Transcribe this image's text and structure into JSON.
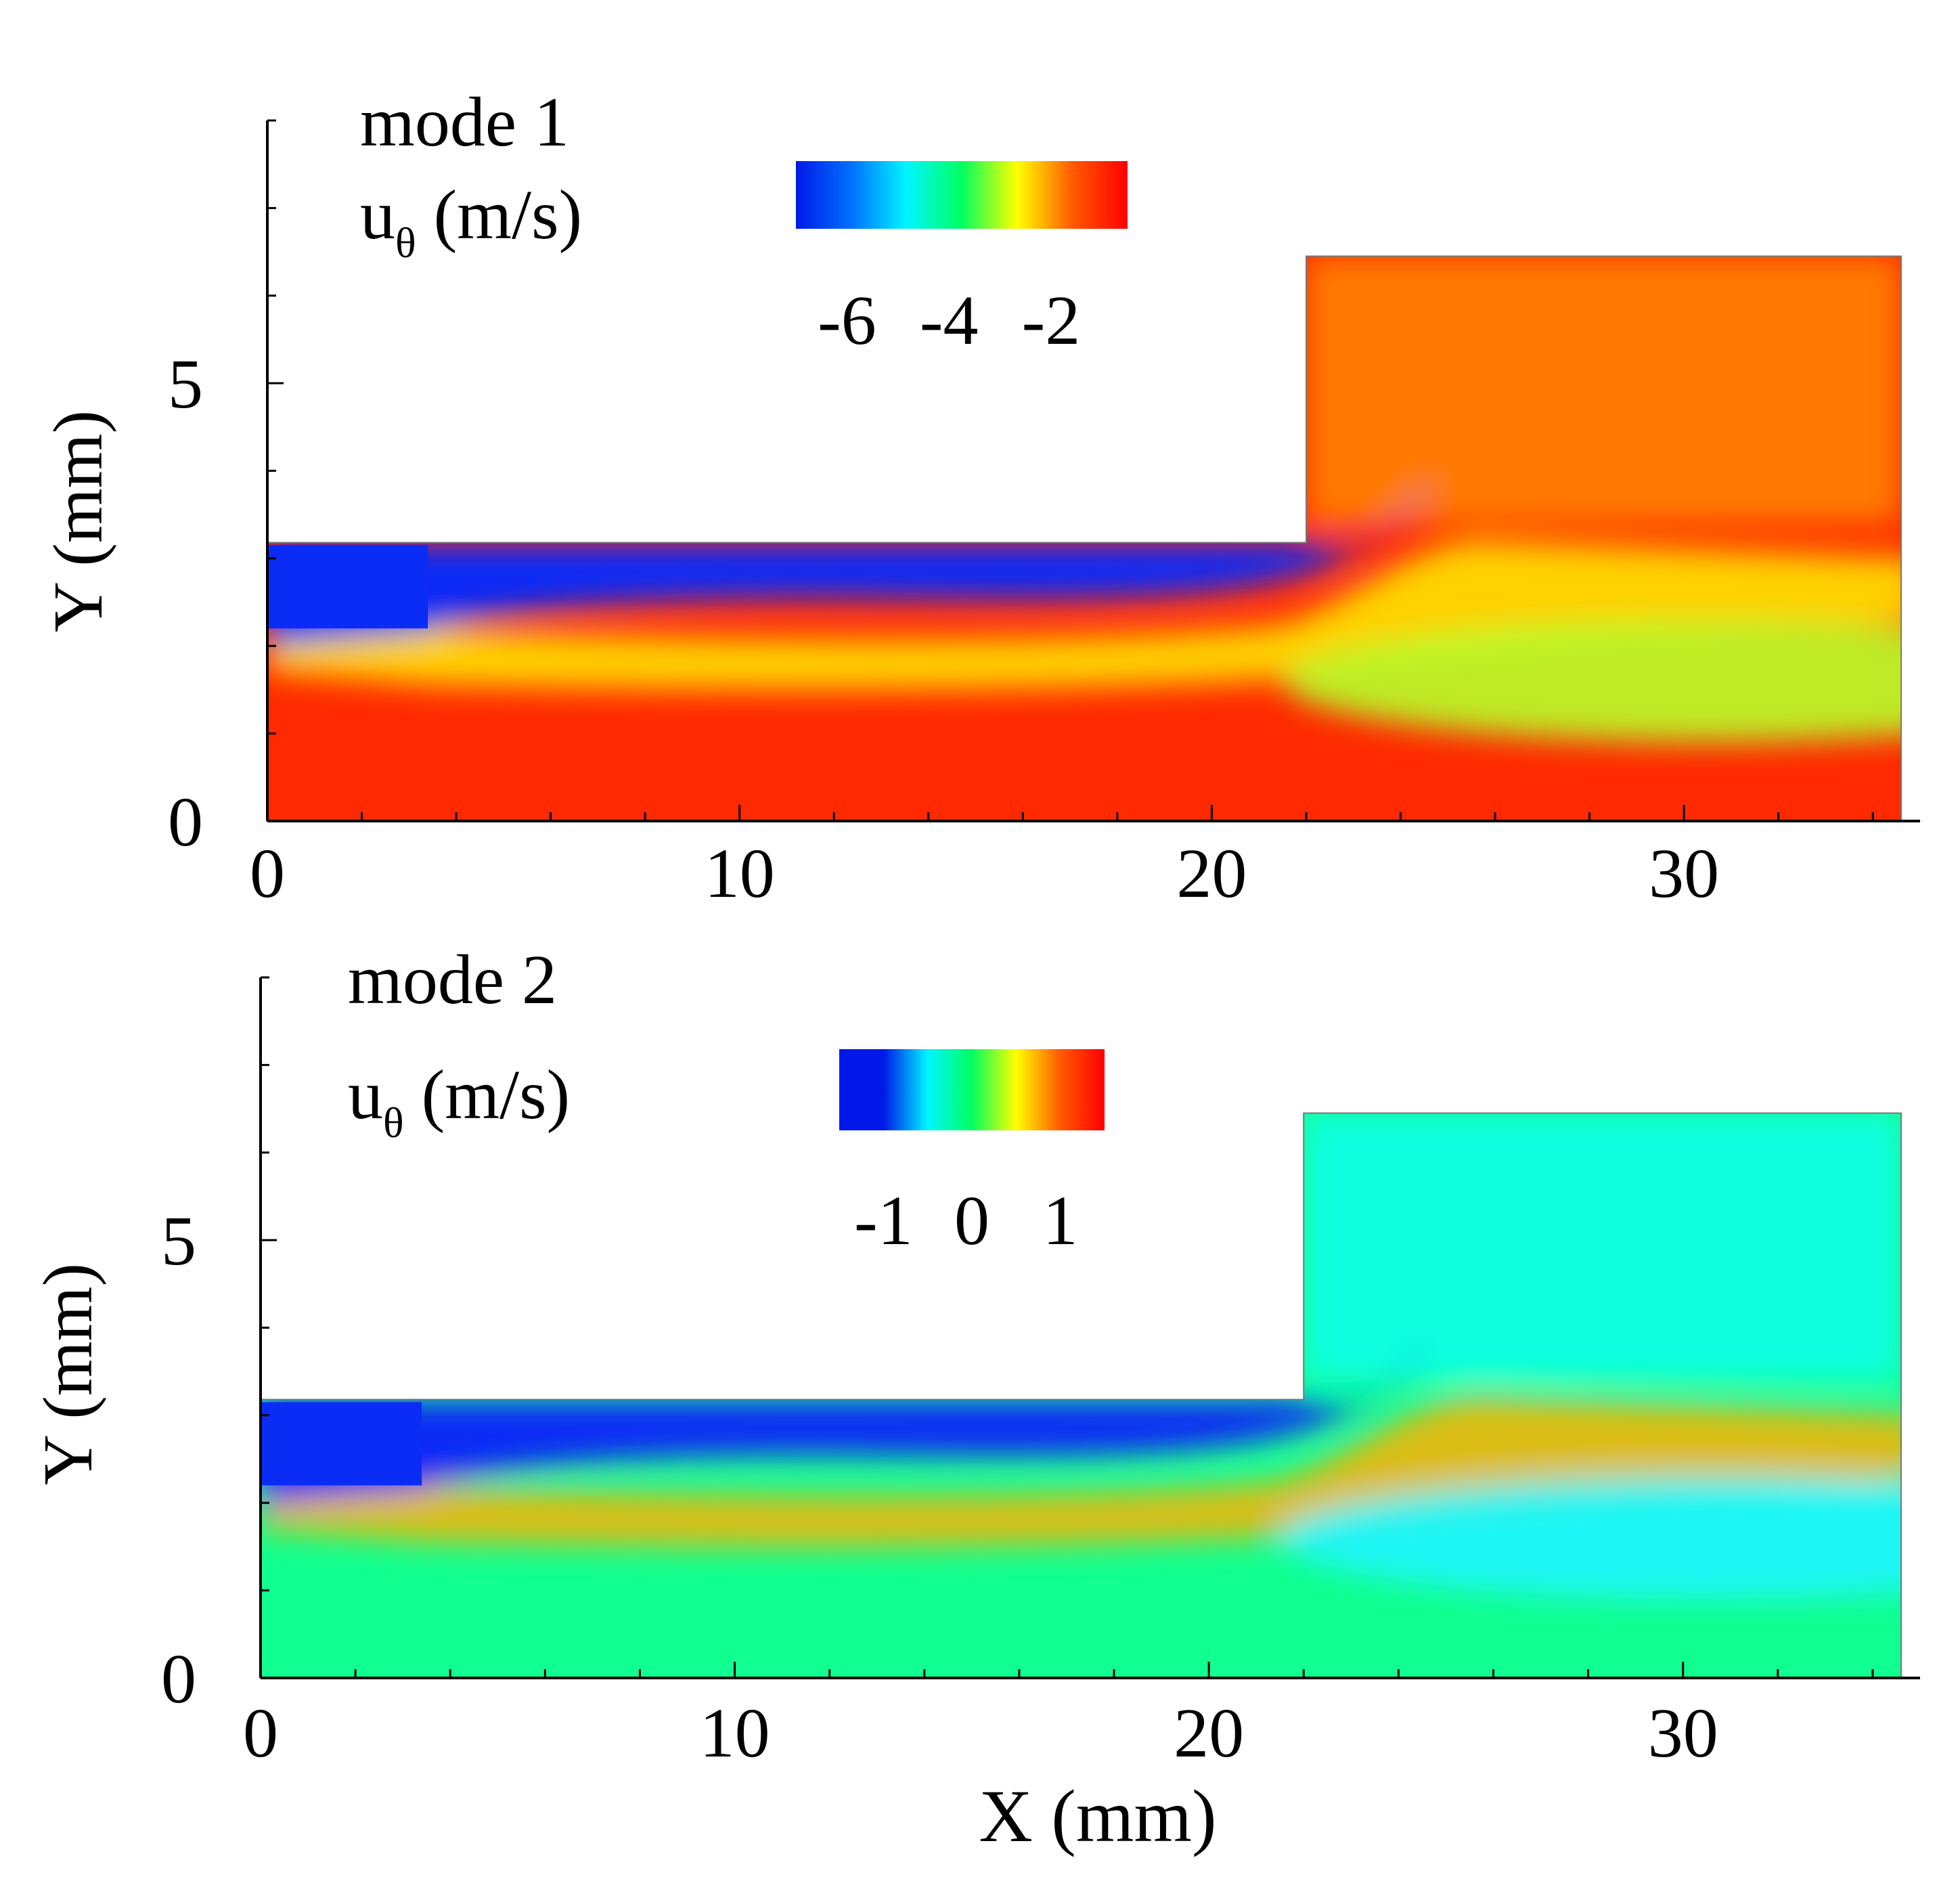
{
  "chart_data": [
    {
      "type": "heatmap",
      "panel_label": "mode 1",
      "variable_label": "u",
      "variable_subscript": "θ",
      "variable_units": " (m/s)",
      "colorbar": {
        "ticks": [
          -6,
          -4,
          -2
        ],
        "tick_labels": [
          "-6",
          "-4",
          "-2"
        ],
        "range": [
          -7,
          -0.5
        ],
        "colormap": [
          "#0018e8",
          "#0070ff",
          "#00f5ff",
          "#00ff60",
          "#ffff00",
          "#ff5a00",
          "#ff0000"
        ]
      },
      "xlabel": "",
      "ylabel": "Y (mm)",
      "xlim": [
        0,
        35
      ],
      "ylim": [
        0,
        8
      ],
      "x_ticks": [
        0,
        10,
        20,
        30
      ],
      "x_tick_labels": [
        "0",
        "10",
        "20",
        "30"
      ],
      "y_ticks": [
        0,
        5
      ],
      "y_tick_labels": [
        "0",
        "5"
      ],
      "domain": {
        "inlet_channel": {
          "x": [
            0,
            22
          ],
          "y": [
            0,
            3.18
          ]
        },
        "expansion": {
          "x": [
            22,
            34.6
          ],
          "y": [
            0,
            6.45
          ]
        }
      },
      "field_colors": {
        "background": "#ff2a00",
        "jet_core": "#0a2cf5",
        "shear_layer": "#ffee00",
        "downstream": "#ff7a00",
        "recirculation": "#b8ff2a"
      }
    },
    {
      "type": "heatmap",
      "panel_label": "mode 2",
      "variable_label": "u",
      "variable_subscript": "θ",
      "variable_units": " (m/s)",
      "colorbar": {
        "ticks": [
          -1,
          0,
          1
        ],
        "tick_labels": [
          "-1",
          "0",
          "1"
        ],
        "range": [
          -1.5,
          1.5
        ],
        "colormap": [
          "#0018e8",
          "#0018e8",
          "#00f5ff",
          "#00ff60",
          "#ffff00",
          "#ff5a00",
          "#ff0000"
        ]
      },
      "xlabel": "X (mm)",
      "ylabel": "Y (mm)",
      "xlim": [
        0,
        35
      ],
      "ylim": [
        0,
        8
      ],
      "x_ticks": [
        0,
        10,
        20,
        30
      ],
      "x_tick_labels": [
        "0",
        "10",
        "20",
        "30"
      ],
      "y_ticks": [
        0,
        5
      ],
      "y_tick_labels": [
        "0",
        "5"
      ],
      "domain": {
        "inlet_channel": {
          "x": [
            0,
            22
          ],
          "y": [
            0,
            3.18
          ]
        },
        "expansion": {
          "x": [
            22,
            34.6
          ],
          "y": [
            0,
            6.45
          ]
        }
      },
      "field_colors": {
        "background": "#10ff90",
        "jet_core": "#0a2cf5",
        "shear_layer": "#ffb000",
        "downstream": "#10ffe0",
        "recirculation": "#20f5ff"
      }
    }
  ]
}
